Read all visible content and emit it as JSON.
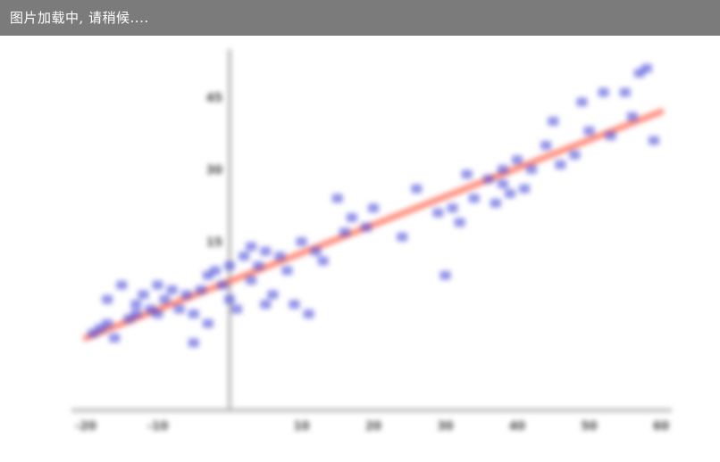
{
  "loading_text": "图片加载中, 请稍候....",
  "colors": {
    "bar": "#7b7b7b",
    "points": "#3b3bd9",
    "trend": "#ff6a55",
    "axis": "#b8b8b8"
  },
  "chart_data": {
    "type": "scatter",
    "title": "",
    "xlabel": "",
    "ylabel": "",
    "xlim": [
      -20,
      60
    ],
    "ylim": [
      -20,
      55
    ],
    "xticks": [
      -20,
      -10,
      10,
      20,
      30,
      40,
      50,
      60
    ],
    "yticks": [
      15,
      30,
      45
    ],
    "x": [
      -19,
      -18,
      -17,
      -17,
      -16,
      -15,
      -14,
      -13,
      -13,
      -12,
      -11,
      -10,
      -10,
      -9,
      -8,
      -7,
      -6,
      -5,
      -5,
      -4,
      -3,
      -3,
      -2,
      -1,
      0,
      0,
      1,
      2,
      3,
      3,
      4,
      5,
      5,
      6,
      7,
      8,
      9,
      10,
      11,
      12,
      13,
      15,
      16,
      17,
      19,
      20,
      24,
      26,
      29,
      30,
      31,
      32,
      33,
      34,
      36,
      37,
      38,
      38,
      39,
      40,
      41,
      42,
      44,
      45,
      46,
      48,
      49,
      50,
      52,
      53,
      55,
      56,
      57,
      58,
      59
    ],
    "y": [
      -4,
      -3,
      3,
      -2,
      -5,
      6,
      -1,
      0,
      2,
      4,
      1,
      0,
      6,
      3,
      5,
      1,
      4,
      -6,
      0,
      5,
      8,
      -2,
      9,
      6,
      3,
      10,
      1,
      12,
      7,
      14,
      10,
      2,
      13,
      4,
      12,
      9,
      2,
      15,
      0,
      13,
      11,
      24,
      17,
      20,
      18,
      22,
      16,
      26,
      21,
      8,
      22,
      19,
      29,
      24,
      28,
      23,
      27,
      30,
      25,
      32,
      26,
      30,
      35,
      40,
      31,
      33,
      44,
      38,
      46,
      37,
      46,
      41,
      50,
      51,
      36
    ],
    "trendline": {
      "x": [
        -20,
        60
      ],
      "y": [
        -5,
        42
      ]
    },
    "grid": false,
    "legend": "none"
  }
}
